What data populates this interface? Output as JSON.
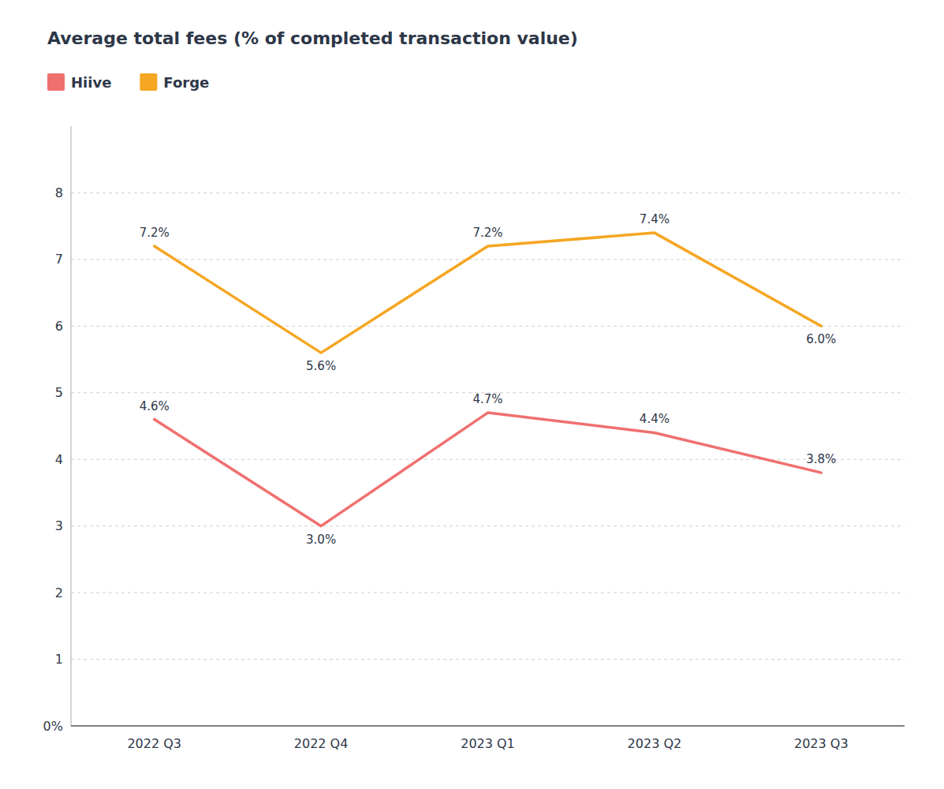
{
  "chart_data": {
    "type": "line",
    "title": "Average total fees (% of completed transaction value)",
    "categories": [
      "2022 Q3",
      "2022 Q4",
      "2023 Q1",
      "2023 Q2",
      "2023 Q3"
    ],
    "series": [
      {
        "name": "Hiive",
        "color": "#F07070",
        "values": [
          4.6,
          3.0,
          4.7,
          4.4,
          3.8
        ],
        "value_labels": [
          "4.6%",
          "3.0%",
          "4.7%",
          "4.4%",
          "3.8%"
        ]
      },
      {
        "name": "Forge",
        "color": "#F5A623",
        "values": [
          7.2,
          5.6,
          7.2,
          7.4,
          6.0
        ],
        "value_labels": [
          "7.2%",
          "5.6%",
          "7.2%",
          "7.4%",
          "6.0%"
        ]
      }
    ],
    "ylim": [
      0,
      9
    ],
    "yticks": [
      {
        "value": 0,
        "label": "0%"
      },
      1,
      2,
      3,
      4,
      5,
      6,
      7,
      8
    ],
    "grid": true,
    "legend": "top",
    "data_labels": true
  }
}
